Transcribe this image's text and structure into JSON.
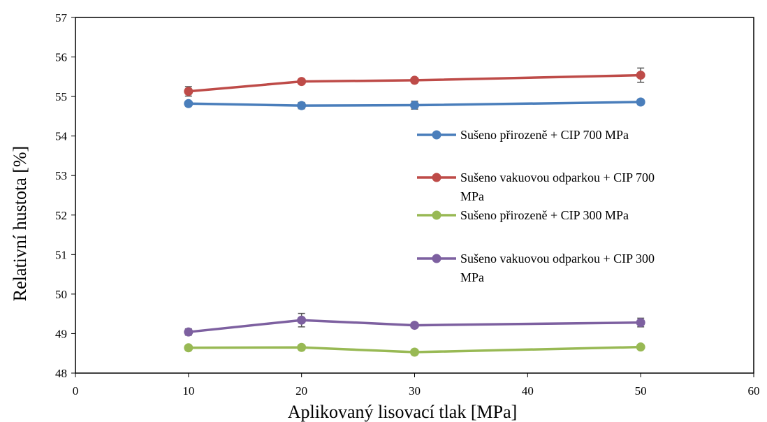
{
  "chart_data": {
    "type": "line",
    "title": "",
    "xlabel": "Aplikovaný lisovací tlak [MPa]",
    "ylabel": "Relativní hustota [%]",
    "xlim": [
      0,
      60
    ],
    "ylim": [
      48,
      57
    ],
    "x_ticks": [
      "0",
      "10",
      "20",
      "30",
      "40",
      "50",
      "60"
    ],
    "y_ticks": [
      "48",
      "49",
      "50",
      "51",
      "52",
      "53",
      "54",
      "55",
      "56",
      "57"
    ],
    "grid": false,
    "legend_position": "right",
    "series": [
      {
        "name": "Sušeno přirozeně + CIP 700 MPa",
        "name_lines": [
          "Sušeno přirozeně + CIP 700 MPa"
        ],
        "color": "#4a7ebb",
        "x": [
          10,
          20,
          30,
          50
        ],
        "y": [
          54.82,
          54.77,
          54.78,
          54.86
        ],
        "err": [
          0.05,
          0.08,
          0.1,
          0.06
        ]
      },
      {
        "name": "Sušeno vakuovou odparkou + CIP 700 MPa",
        "name_lines": [
          "Sušeno vakuovou odparkou + CIP 700",
          "MPa"
        ],
        "color": "#be4b48",
        "x": [
          10,
          20,
          30,
          50
        ],
        "y": [
          55.13,
          55.38,
          55.41,
          55.54
        ],
        "err": [
          0.12,
          0.05,
          0.06,
          0.18
        ]
      },
      {
        "name": "Sušeno přirozeně + CIP 300 MPa",
        "name_lines": [
          "Sušeno přirozeně + CIP 300 MPa"
        ],
        "color": "#98b954",
        "x": [
          10,
          20,
          30,
          50
        ],
        "y": [
          48.64,
          48.65,
          48.53,
          48.66
        ],
        "err": [
          0.04,
          0.04,
          0.06,
          0.04
        ]
      },
      {
        "name": "Sušeno vakuovou odparkou + CIP 300 MPa",
        "name_lines": [
          "Sušeno vakuovou odparkou + CIP 300",
          "MPa"
        ],
        "color": "#7d60a0",
        "x": [
          10,
          20,
          30,
          50
        ],
        "y": [
          49.04,
          49.34,
          49.21,
          49.28
        ],
        "err": [
          0.08,
          0.17,
          0.05,
          0.11
        ]
      }
    ]
  }
}
